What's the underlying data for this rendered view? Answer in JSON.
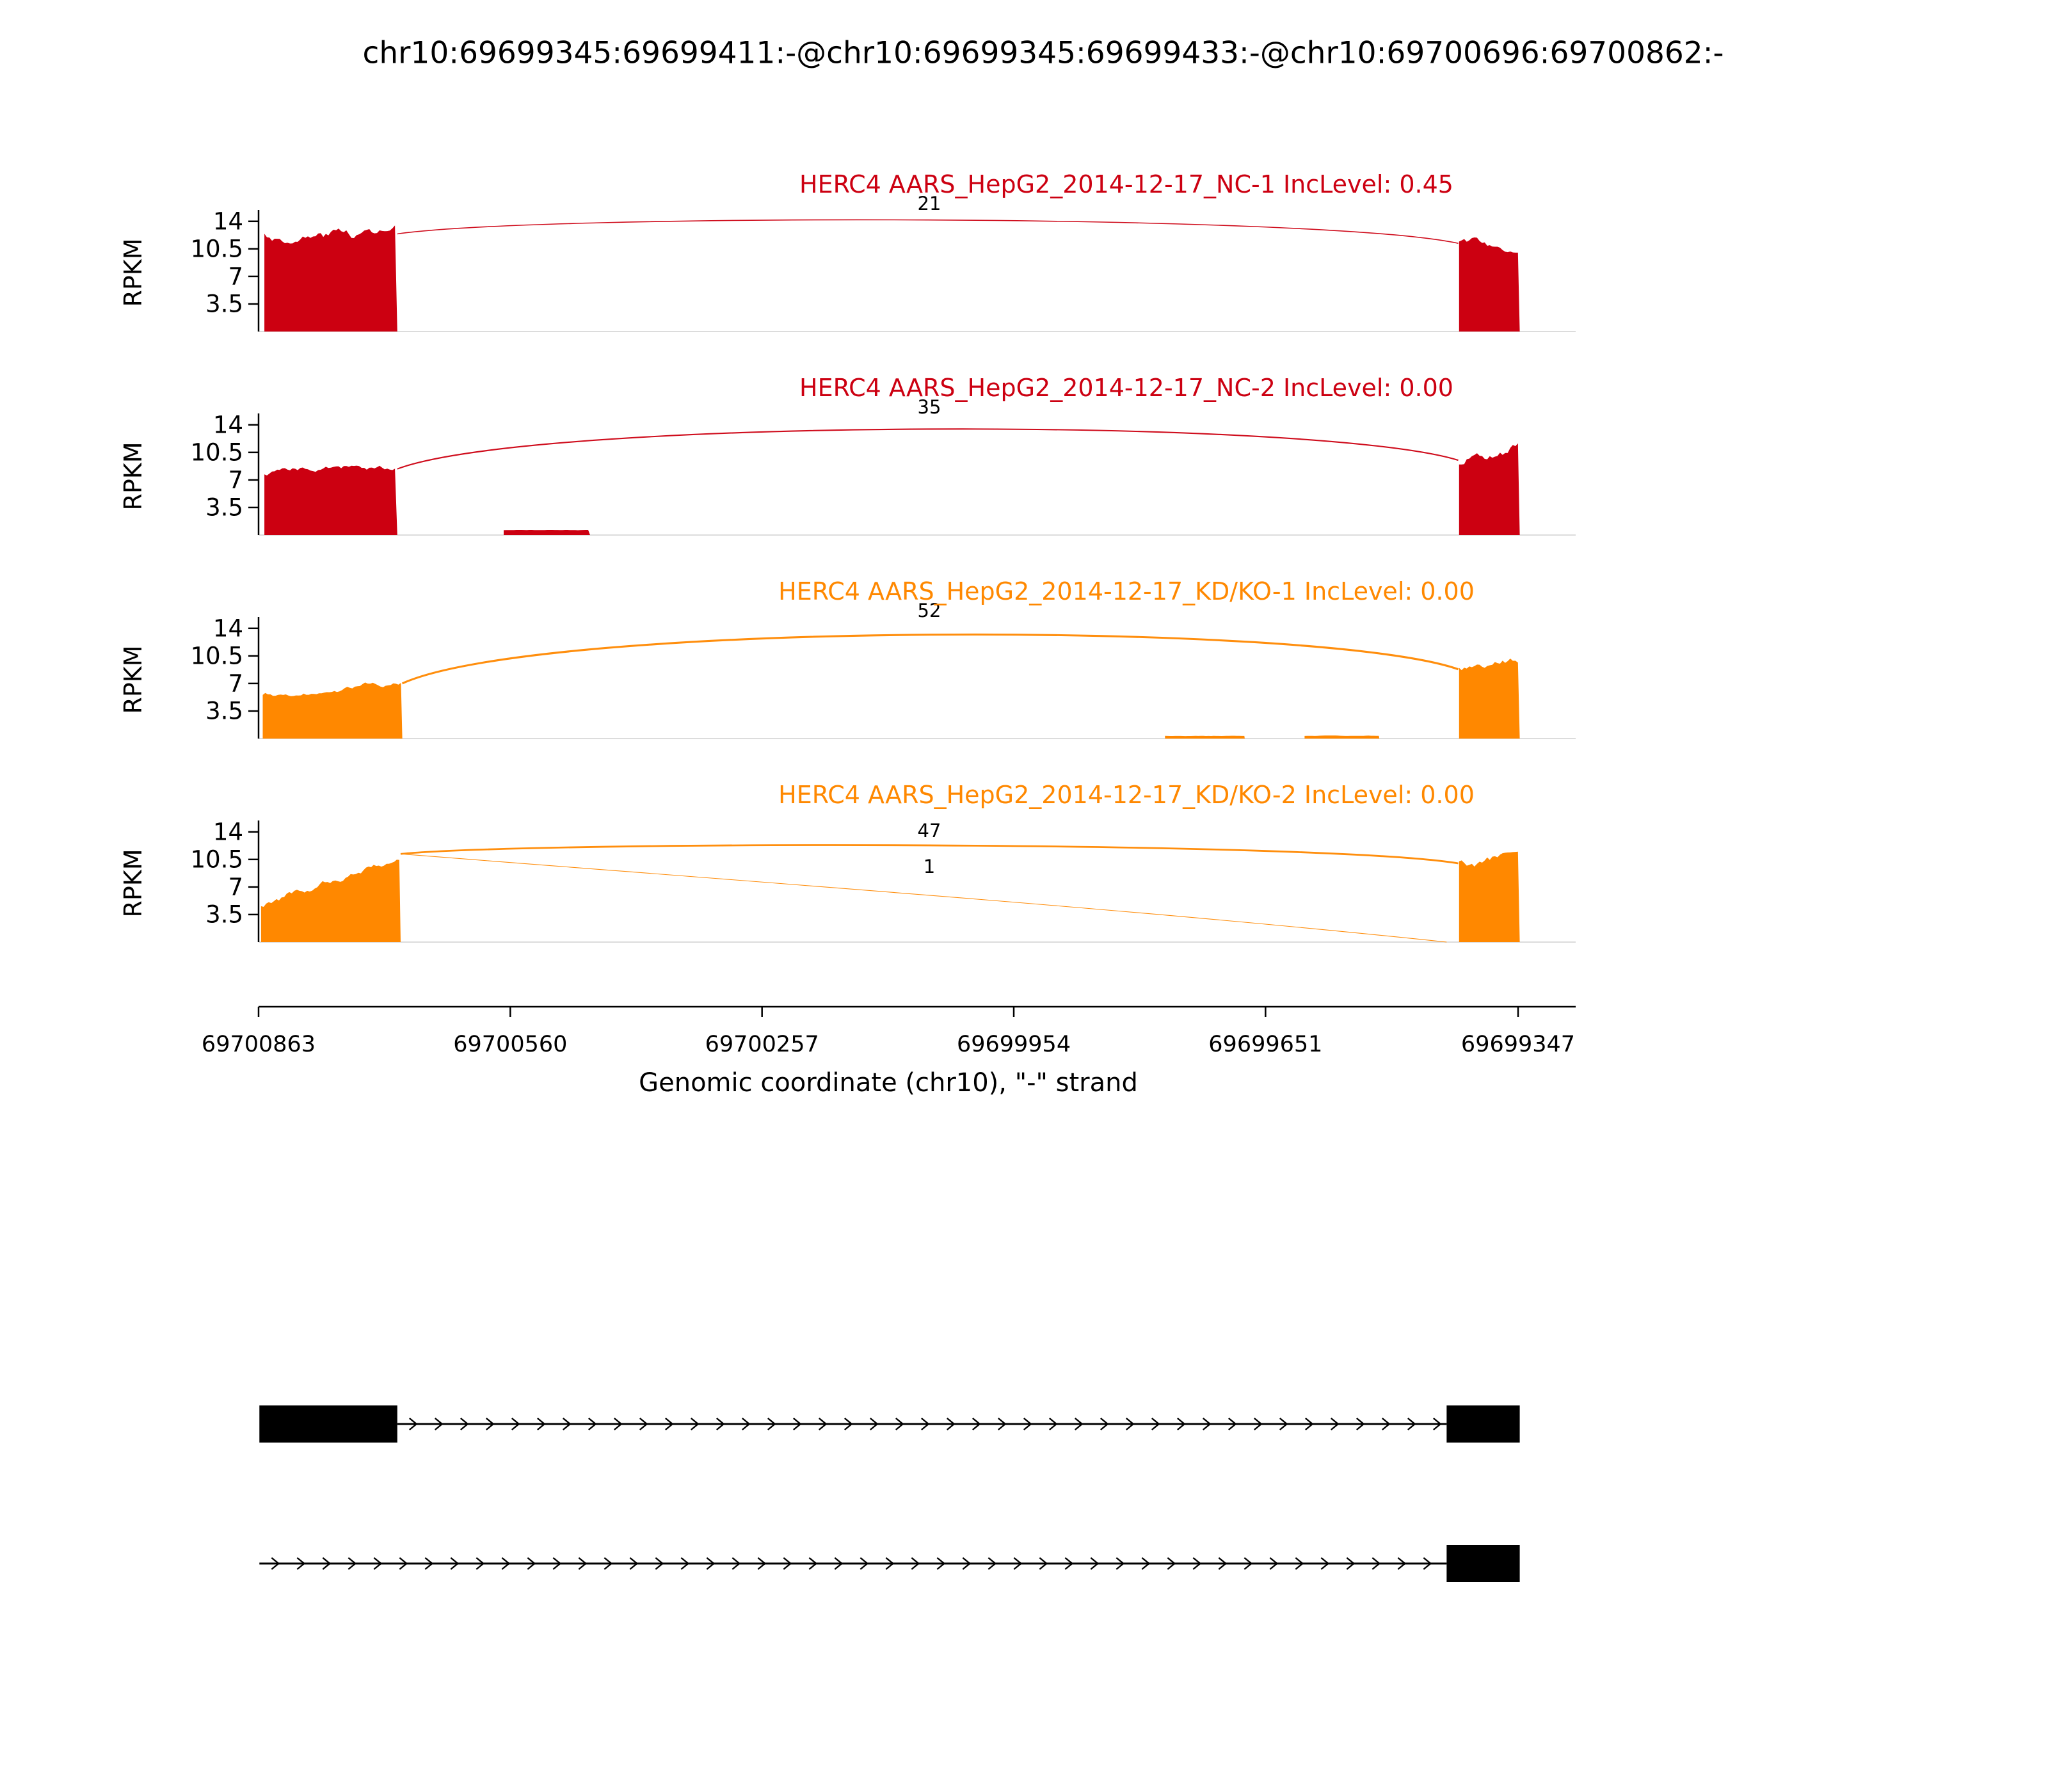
{
  "chart_data": {
    "type": "area",
    "subtype": "rmats-sashimi-coverage-plot",
    "title": "chr10:69699345:69699411:-@chr10:69699345:69699433:-@chr10:69700696:69700862:-",
    "xlabel": "Genomic coordinate (chr10), \"-\" strand",
    "ylabel": "RPKM",
    "x_ticks": [
      "69700863",
      "69700560",
      "69700257",
      "69699954",
      "69699651",
      "69699347"
    ],
    "x_axis_reversed": true,
    "x_domain": [
      69700880,
      69699290
    ],
    "y_ticks": [
      "3.5",
      "7",
      "10.5",
      "14"
    ],
    "ylim": [
      0,
      15
    ],
    "legend": "none",
    "grid": false,
    "colors": {
      "nc_group": "#CC0011",
      "kd_group": "#FF8800",
      "exon_model": "#000000"
    },
    "tracks": [
      {
        "label": "HERC4 AARS_HepG2_2014-12-17_NC-1 IncLevel: 0.45",
        "color": "#CC0011",
        "coverage": [
          {
            "start": 69700856,
            "end": 69700696,
            "h0": 12.2,
            "h1": 12.6,
            "noise": 1.1
          },
          {
            "start": 69699418,
            "end": 69699345,
            "h0": 11.2,
            "h1": 10.6,
            "noise": 0.9
          }
        ],
        "junctions": [
          {
            "from": 69700696,
            "to": 69699419,
            "count": "21",
            "from_h": 12.4,
            "to_h": 11.2,
            "apex": 84,
            "label_y": 68,
            "sag": false
          }
        ]
      },
      {
        "label": "HERC4 AARS_HepG2_2014-12-17_NC-2 IncLevel: 0.00",
        "color": "#CC0011",
        "coverage": [
          {
            "start": 69700856,
            "end": 69700696,
            "h0": 7.8,
            "h1": 8.4,
            "noise": 0.6
          },
          {
            "start": 69700568,
            "end": 69700464,
            "h0": 0.6,
            "h1": 0.6,
            "noise": 0.05
          },
          {
            "start": 69699418,
            "end": 69699345,
            "h0": 9.3,
            "h1": 12.2,
            "noise": 1.2
          }
        ],
        "junctions": [
          {
            "from": 69700696,
            "to": 69699419,
            "count": "35",
            "from_h": 8.4,
            "to_h": 9.5,
            "apex": 84,
            "label_y": 68,
            "sag": false
          }
        ]
      },
      {
        "label": "HERC4 AARS_HepG2_2014-12-17_KD/KO-1 IncLevel: 0.00",
        "color": "#FF8800",
        "coverage": [
          {
            "start": 69700858,
            "end": 69700690,
            "h0": 5.6,
            "h1": 7.0,
            "noise": 0.5
          },
          {
            "start": 69699772,
            "end": 69699676,
            "h0": 0.35,
            "h1": 0.35,
            "noise": 0.04
          },
          {
            "start": 69699604,
            "end": 69699514,
            "h0": 0.35,
            "h1": 0.35,
            "noise": 0.04
          },
          {
            "start": 69699418,
            "end": 69699345,
            "h0": 8.8,
            "h1": 9.8,
            "noise": 0.8
          }
        ],
        "junctions": [
          {
            "from": 69700690,
            "to": 69699419,
            "count": "52",
            "from_h": 7.0,
            "to_h": 8.8,
            "apex": 84,
            "label_y": 68,
            "sag": false
          }
        ]
      },
      {
        "label": "HERC4 AARS_HepG2_2014-12-17_KD/KO-2 IncLevel: 0.00",
        "color": "#FF8800",
        "coverage": [
          {
            "start": 69700860,
            "end": 69700692,
            "h0": 4.6,
            "h1": 11.2,
            "noise": 0.7
          },
          {
            "start": 69699418,
            "end": 69699345,
            "h0": 10.0,
            "h1": 10.6,
            "noise": 0.9
          }
        ],
        "junctions": [
          {
            "from": 69700692,
            "to": 69699419,
            "count": "47",
            "from_h": 11.2,
            "to_h": 10.0,
            "apex": 110,
            "label_y": 94,
            "sag": false
          },
          {
            "from": 69700692,
            "to": 69699433,
            "count": "1",
            "from_h": 11.2,
            "to_h": 0,
            "apex": 185,
            "label_y": 150,
            "sag": true
          }
        ]
      }
    ],
    "transcripts": [
      {
        "exons": [
          [
            69700862,
            69700696
          ],
          [
            69699433,
            69699345
          ]
        ],
        "intron": [
          69700696,
          69699433
        ],
        "strand": "-"
      },
      {
        "exons": [
          [
            69699433,
            69699345
          ]
        ],
        "intron": [
          69700862,
          69699433
        ],
        "strand": "-"
      }
    ]
  }
}
